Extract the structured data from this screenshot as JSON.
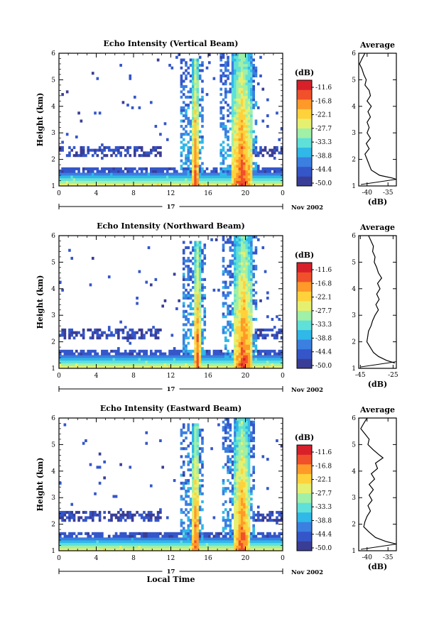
{
  "chart_data": [
    {
      "type": "heatmap",
      "title": "Echo Intensity (Vertical Beam)",
      "ylabel": "Height (km)",
      "xlabel": "",
      "xlim": [
        0,
        24
      ],
      "ylim": [
        1,
        6
      ],
      "xticks": [
        "0",
        "4",
        "8",
        "12",
        "16",
        "20",
        "0"
      ],
      "yticks": [
        "1",
        "2",
        "3",
        "4",
        "5",
        "6"
      ],
      "date_day": "17",
      "date_month_year": "Nov 2002",
      "colorbar": {
        "unit": "(dB)",
        "ticks": [
          "-11.6",
          "-16.8",
          "-22.1",
          "-27.7",
          "-33.3",
          "-38.8",
          "-44.4",
          "-50.0"
        ]
      },
      "profile": {
        "title": "Average",
        "xlabel": "(dB)",
        "xlim": [
          -42,
          -33
        ],
        "xticks": [
          "-40",
          "-35"
        ],
        "points": [
          [
            -40.5,
            6.0
          ],
          [
            -41.2,
            5.8
          ],
          [
            -41.8,
            5.6
          ],
          [
            -41.2,
            5.4
          ],
          [
            -40.8,
            5.2
          ],
          [
            -40.2,
            5.0
          ],
          [
            -40.5,
            4.8
          ],
          [
            -39.5,
            4.6
          ],
          [
            -39.2,
            4.4
          ],
          [
            -40.0,
            4.2
          ],
          [
            -39.0,
            4.0
          ],
          [
            -39.8,
            3.8
          ],
          [
            -39.2,
            3.6
          ],
          [
            -40.0,
            3.4
          ],
          [
            -39.5,
            3.2
          ],
          [
            -40.0,
            3.0
          ],
          [
            -39.2,
            2.8
          ],
          [
            -40.2,
            2.6
          ],
          [
            -39.5,
            2.4
          ],
          [
            -40.5,
            2.2
          ],
          [
            -40.0,
            2.0
          ],
          [
            -39.5,
            1.8
          ],
          [
            -39.0,
            1.6
          ],
          [
            -37.0,
            1.4
          ],
          [
            -34.0,
            1.3
          ],
          [
            -33.0,
            1.25
          ]
        ]
      },
      "events": [
        {
          "t_start": 14.3,
          "t_end": 15.0,
          "h_top": 5.8,
          "peak_db": -11.6
        },
        {
          "t_start": 18.5,
          "t_end": 20.8,
          "h_top": 6.0,
          "peak_db": -11.6
        }
      ]
    },
    {
      "type": "heatmap",
      "title": "Echo Intensity (Northward Beam)",
      "ylabel": "Height (km)",
      "xlabel": "",
      "xlim": [
        0,
        24
      ],
      "ylim": [
        1,
        6
      ],
      "xticks": [
        "0",
        "4",
        "8",
        "12",
        "16",
        "20",
        "0"
      ],
      "yticks": [
        "1",
        "2",
        "3",
        "4",
        "5",
        "6"
      ],
      "date_day": "17",
      "date_month_year": "Nov 2002",
      "colorbar": {
        "unit": "(dB)",
        "ticks": [
          "-11.6",
          "-16.8",
          "-22.1",
          "-27.7",
          "-33.3",
          "-38.8",
          "-44.4",
          "-50.0"
        ]
      },
      "profile": {
        "title": "Average",
        "xlabel": "(dB)",
        "xlim": [
          -46,
          -23
        ],
        "xticks": [
          "-45",
          "-25"
        ],
        "points": [
          [
            -40.0,
            6.0
          ],
          [
            -38.5,
            5.8
          ],
          [
            -37.0,
            5.6
          ],
          [
            -37.5,
            5.4
          ],
          [
            -36.0,
            5.2
          ],
          [
            -36.5,
            5.0
          ],
          [
            -35.0,
            4.8
          ],
          [
            -34.0,
            4.6
          ],
          [
            -32.0,
            4.4
          ],
          [
            -34.5,
            4.2
          ],
          [
            -33.0,
            4.0
          ],
          [
            -35.0,
            3.8
          ],
          [
            -33.5,
            3.6
          ],
          [
            -35.5,
            3.4
          ],
          [
            -34.0,
            3.2
          ],
          [
            -36.0,
            3.0
          ],
          [
            -37.5,
            2.8
          ],
          [
            -38.5,
            2.6
          ],
          [
            -40.0,
            2.4
          ],
          [
            -40.5,
            2.2
          ],
          [
            -41.0,
            2.0
          ],
          [
            -39.0,
            1.8
          ],
          [
            -37.0,
            1.6
          ],
          [
            -34.0,
            1.45
          ],
          [
            -29.0,
            1.3
          ],
          [
            -24.0,
            1.2
          ]
        ]
      },
      "events": [
        {
          "t_start": 14.5,
          "t_end": 15.2,
          "h_top": 5.8,
          "peak_db": -11.6
        },
        {
          "t_start": 18.8,
          "t_end": 20.8,
          "h_top": 6.0,
          "peak_db": -11.6
        }
      ]
    },
    {
      "type": "heatmap",
      "title": "Echo Intensity (Eastward Beam)",
      "ylabel": "Height (km)",
      "xlabel": "Local Time",
      "xlim": [
        0,
        24
      ],
      "ylim": [
        1,
        6
      ],
      "xticks": [
        "0",
        "4",
        "8",
        "12",
        "16",
        "20",
        "0"
      ],
      "yticks": [
        "1",
        "2",
        "3",
        "4",
        "5",
        "6"
      ],
      "date_day": "17",
      "date_month_year": "Nov 2002",
      "colorbar": {
        "unit": "(dB)",
        "ticks": [
          "-11.6",
          "-16.8",
          "-22.1",
          "-27.7",
          "-33.3",
          "-38.8",
          "-44.4",
          "-50.0"
        ]
      },
      "profile": {
        "title": "Average",
        "xlabel": "(dB)",
        "xlim": [
          -42,
          -33
        ],
        "xticks": [
          "-40",
          "-35"
        ],
        "points": [
          [
            -40.0,
            6.0
          ],
          [
            -40.8,
            5.8
          ],
          [
            -41.5,
            5.6
          ],
          [
            -40.5,
            5.4
          ],
          [
            -39.5,
            5.2
          ],
          [
            -39.8,
            5.0
          ],
          [
            -38.5,
            4.8
          ],
          [
            -37.0,
            4.6
          ],
          [
            -36.2,
            4.5
          ],
          [
            -38.0,
            4.3
          ],
          [
            -37.5,
            4.1
          ],
          [
            -39.0,
            3.9
          ],
          [
            -38.2,
            3.7
          ],
          [
            -39.5,
            3.5
          ],
          [
            -38.5,
            3.3
          ],
          [
            -39.5,
            3.1
          ],
          [
            -38.8,
            2.9
          ],
          [
            -39.8,
            2.7
          ],
          [
            -39.2,
            2.5
          ],
          [
            -40.0,
            2.3
          ],
          [
            -40.5,
            2.1
          ],
          [
            -40.8,
            1.9
          ],
          [
            -39.5,
            1.7
          ],
          [
            -38.0,
            1.5
          ],
          [
            -35.5,
            1.35
          ],
          [
            -33.0,
            1.25
          ]
        ]
      },
      "events": [
        {
          "t_start": 14.3,
          "t_end": 15.1,
          "h_top": 5.8,
          "peak_db": -11.6
        },
        {
          "t_start": 18.8,
          "t_end": 20.5,
          "h_top": 6.0,
          "peak_db": -11.6
        }
      ]
    }
  ],
  "colors": {
    "scale": [
      "#3a3d96",
      "#3456c9",
      "#3b7fe0",
      "#2fb8e8",
      "#5fe0d8",
      "#a0f0a8",
      "#e6f070",
      "#ffd23c",
      "#ff9a28",
      "#f0502a",
      "#d8202a"
    ]
  }
}
